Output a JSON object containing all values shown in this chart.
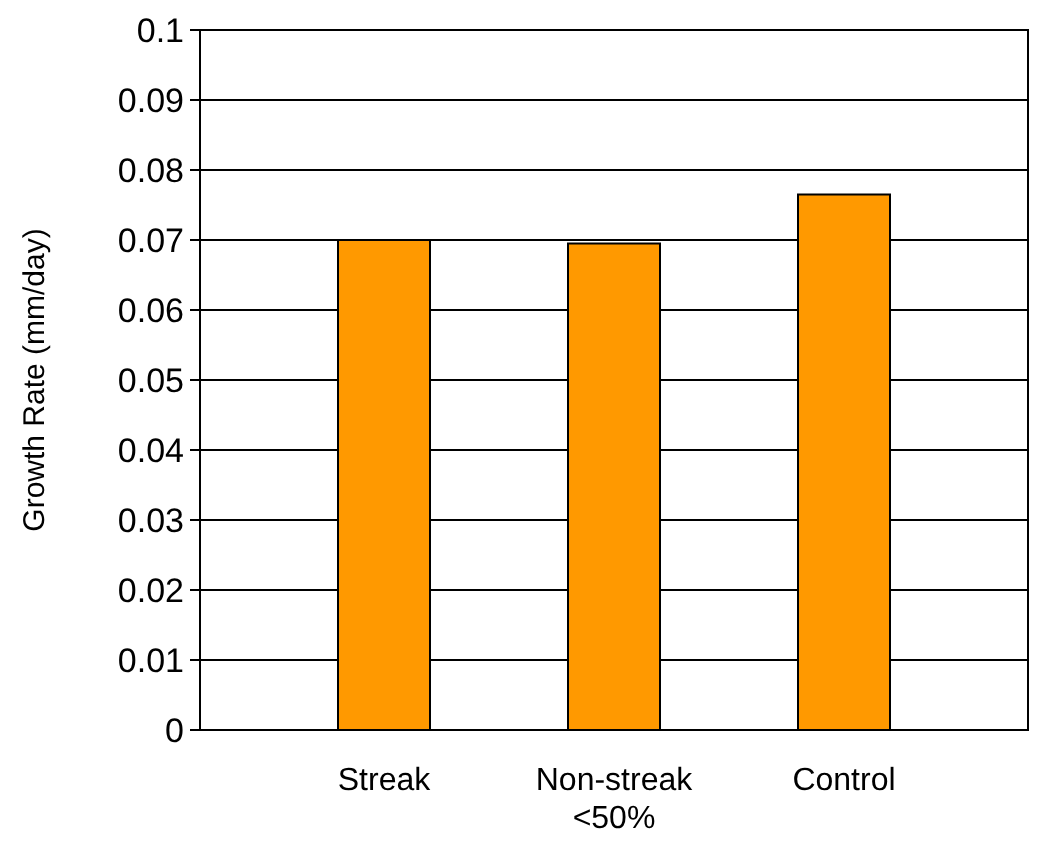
{
  "chart_data": {
    "type": "bar",
    "ylabel": "Growth Rate (mm/day)",
    "categories": [
      "Streak",
      "Non-streak\n<50%",
      "Control"
    ],
    "values": [
      0.07,
      0.0695,
      0.0765
    ],
    "color": "#ff9900",
    "ylim": [
      0,
      0.1
    ],
    "yticks": [
      0,
      0.01,
      0.02,
      0.03,
      0.04,
      0.05,
      0.06,
      0.07,
      0.08,
      0.09,
      0.1
    ],
    "grid": "y"
  }
}
